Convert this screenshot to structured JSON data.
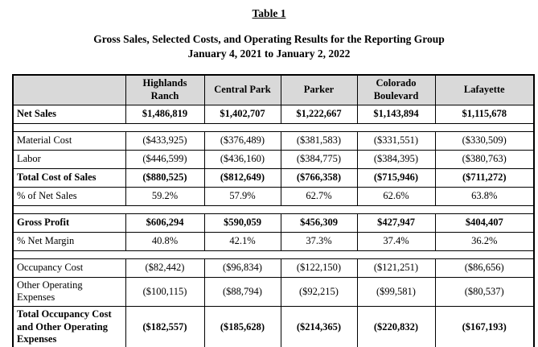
{
  "page": {
    "title": "Table 1",
    "subtitle_line1": "Gross Sales, Selected Costs, and Operating Results for the Reporting Group",
    "subtitle_line2": "January 4, 2021 to January 2, 2022"
  },
  "colors": {
    "header_bg": "#d9d9d9",
    "border": "#000000"
  },
  "table": {
    "columns": [
      "",
      "Highlands Ranch",
      "Central Park",
      "Parker",
      "Colorado Boulevard",
      "Lafayette"
    ],
    "rows": [
      {
        "type": "data",
        "bold": true,
        "label": "Net Sales",
        "values": [
          "$1,486,819",
          "$1,402,707",
          "$1,222,667",
          "$1,143,894",
          "$1,115,678"
        ]
      },
      {
        "type": "spacer"
      },
      {
        "type": "data",
        "bold": false,
        "label": "Material Cost",
        "values": [
          "($433,925)",
          "($376,489)",
          "($381,583)",
          "($331,551)",
          "($330,509)"
        ]
      },
      {
        "type": "data",
        "bold": false,
        "label": "Labor",
        "values": [
          "($446,599)",
          "($436,160)",
          "($384,775)",
          "($384,395)",
          "($380,763)"
        ]
      },
      {
        "type": "data",
        "bold": true,
        "label": "Total Cost of Sales",
        "values": [
          "($880,525)",
          "($812,649)",
          "($766,358)",
          "($715,946)",
          "($711,272)"
        ]
      },
      {
        "type": "data",
        "bold": false,
        "label": "% of Net Sales",
        "values": [
          "59.2%",
          "57.9%",
          "62.7%",
          "62.6%",
          "63.8%"
        ]
      },
      {
        "type": "spacer"
      },
      {
        "type": "data",
        "bold": true,
        "label": "Gross Profit",
        "values": [
          "$606,294",
          "$590,059",
          "$456,309",
          "$427,947",
          "$404,407"
        ]
      },
      {
        "type": "data",
        "bold": false,
        "label": "% Net Margin",
        "values": [
          "40.8%",
          "42.1%",
          "37.3%",
          "37.4%",
          "36.2%"
        ]
      },
      {
        "type": "spacer"
      },
      {
        "type": "data",
        "bold": false,
        "label": "Occupancy Cost",
        "values": [
          "($82,442)",
          "($96,834)",
          "($122,150)",
          "($121,251)",
          "($86,656)"
        ]
      },
      {
        "type": "data",
        "bold": false,
        "label": "Other Operating Expenses",
        "values": [
          "($100,115)",
          "($88,794)",
          "($92,215)",
          "($99,581)",
          "($80,537)"
        ]
      },
      {
        "type": "data",
        "bold": true,
        "label": "Total Occupancy Cost and Other Operating Expenses",
        "values": [
          "($182,557)",
          "($185,628)",
          "($214,365)",
          "($220,832)",
          "($167,193)"
        ]
      }
    ]
  },
  "decoration": {
    "strip_segments": [
      {
        "color": "#d3d169",
        "width": 19
      },
      {
        "color": "#f6a243",
        "width": 18
      },
      {
        "color": "#d3d169",
        "width": 18
      },
      {
        "color": "#f6a243",
        "width": 18
      }
    ]
  }
}
